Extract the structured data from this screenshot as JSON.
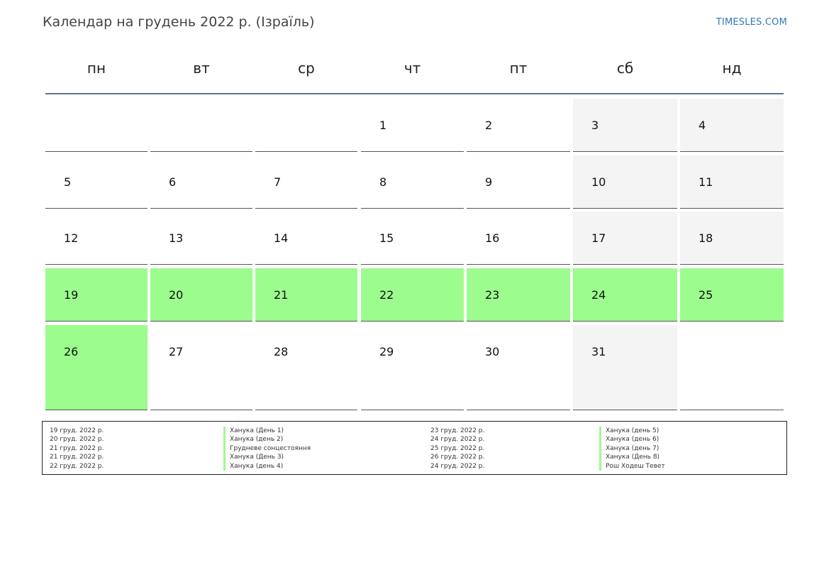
{
  "header": {
    "title": "Календар на грудень 2022 р. (Ізраїль)",
    "brand": "TIMESLES.COM"
  },
  "colors": {
    "holiday": "#9cfc8e",
    "weekend": "#f4f4f4",
    "header_rule": "#5a7594",
    "brand": "#2e7ab8"
  },
  "weekdays": [
    "пн",
    "вт",
    "ср",
    "чт",
    "пт",
    "сб",
    "нд"
  ],
  "weeks": [
    [
      {
        "day": "",
        "type": "blank"
      },
      {
        "day": "",
        "type": "blank"
      },
      {
        "day": "",
        "type": "blank"
      },
      {
        "day": "1",
        "type": "normal"
      },
      {
        "day": "2",
        "type": "normal"
      },
      {
        "day": "3",
        "type": "weekend"
      },
      {
        "day": "4",
        "type": "weekend"
      }
    ],
    [
      {
        "day": "5",
        "type": "normal"
      },
      {
        "day": "6",
        "type": "normal"
      },
      {
        "day": "7",
        "type": "normal"
      },
      {
        "day": "8",
        "type": "normal"
      },
      {
        "day": "9",
        "type": "normal"
      },
      {
        "day": "10",
        "type": "weekend"
      },
      {
        "day": "11",
        "type": "weekend"
      }
    ],
    [
      {
        "day": "12",
        "type": "normal"
      },
      {
        "day": "13",
        "type": "normal"
      },
      {
        "day": "14",
        "type": "normal"
      },
      {
        "day": "15",
        "type": "normal"
      },
      {
        "day": "16",
        "type": "normal"
      },
      {
        "day": "17",
        "type": "weekend"
      },
      {
        "day": "18",
        "type": "weekend"
      }
    ],
    [
      {
        "day": "19",
        "type": "holiday"
      },
      {
        "day": "20",
        "type": "holiday"
      },
      {
        "day": "21",
        "type": "holiday"
      },
      {
        "day": "22",
        "type": "holiday"
      },
      {
        "day": "23",
        "type": "holiday"
      },
      {
        "day": "24",
        "type": "holiday"
      },
      {
        "day": "25",
        "type": "holiday"
      }
    ],
    [
      {
        "day": "26",
        "type": "holiday"
      },
      {
        "day": "27",
        "type": "normal"
      },
      {
        "day": "28",
        "type": "normal"
      },
      {
        "day": "29",
        "type": "normal"
      },
      {
        "day": "30",
        "type": "normal"
      },
      {
        "day": "31",
        "type": "weekend"
      },
      {
        "day": "",
        "type": "blank"
      }
    ]
  ],
  "legend": {
    "left": [
      {
        "date": "19 груд. 2022 р.",
        "name": "Ханука (День 1)"
      },
      {
        "date": "20 груд. 2022 р.",
        "name": "Ханука (день 2)"
      },
      {
        "date": "21 груд. 2022 р.",
        "name": "Грудневе сонцестояння"
      },
      {
        "date": "21 груд. 2022 р.",
        "name": "Ханука (День 3)"
      },
      {
        "date": "22 груд. 2022 р.",
        "name": "Ханука (день 4)"
      }
    ],
    "right": [
      {
        "date": "23 груд. 2022 р.",
        "name": "Ханука (день 5)"
      },
      {
        "date": "24 груд. 2022 р.",
        "name": "Ханука (день 6)"
      },
      {
        "date": "25 груд. 2022 р.",
        "name": "Ханука (день 7)"
      },
      {
        "date": "26 груд. 2022 р.",
        "name": "Ханука (День 8)"
      },
      {
        "date": "24 груд. 2022 р.",
        "name": "Рош Ходеш Тевет"
      }
    ]
  }
}
